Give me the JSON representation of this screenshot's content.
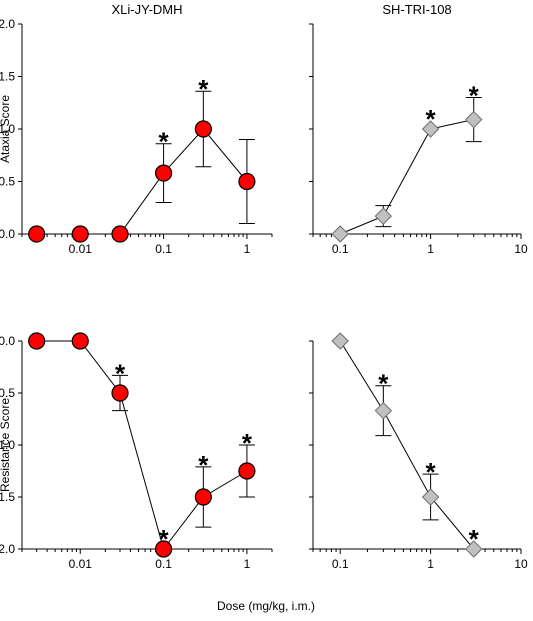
{
  "figure": {
    "shared_xlabel": "Dose (mg/kg, i.m.)",
    "marker_colors": {
      "XLi-JY-DMH": "#ff0000",
      "SH-TRI-108": "#c0c0c0"
    },
    "marker_shapes": {
      "XLi-JY-DMH": "circle",
      "SH-TRI-108": "diamond"
    }
  },
  "chart_data": [
    {
      "type": "scatter",
      "title": "XLi-JY-DMH",
      "ylabel": "Ataxia Score",
      "xscale": "log",
      "xlim": [
        0.002,
        2
      ],
      "ylim": [
        0,
        2
      ],
      "xticks": [
        0.01,
        0.1,
        1
      ],
      "xtick_labels": [
        "0.01",
        "0.1",
        "1"
      ],
      "yticks": [
        0,
        0.5,
        1,
        1.5,
        2
      ],
      "ytick_labels": [
        "0.0",
        "0.5",
        "1.0",
        "1.5",
        "2.0"
      ],
      "series": [
        {
          "x": [
            0.003,
            0.01,
            0.03,
            0.1,
            0.3,
            1
          ],
          "y": [
            0,
            0,
            0,
            0.58,
            1.0,
            0.5
          ],
          "error": [
            0,
            0,
            0,
            0.28,
            0.36,
            0.4
          ],
          "significant": [
            false,
            false,
            false,
            true,
            true,
            false
          ]
        }
      ]
    },
    {
      "type": "scatter",
      "title": "SH-TRI-108",
      "ylabel": "",
      "xscale": "log",
      "xlim": [
        0.05,
        10
      ],
      "ylim": [
        0,
        2
      ],
      "xticks": [
        0.1,
        1,
        10
      ],
      "xtick_labels": [
        "0.1",
        "1",
        "10"
      ],
      "yticks": [
        0,
        0.5,
        1,
        1.5,
        2
      ],
      "ytick_labels": [],
      "series": [
        {
          "x": [
            0.1,
            0.3,
            1,
            3
          ],
          "y": [
            0,
            0.17,
            1.0,
            1.09
          ],
          "error": [
            0,
            0.1,
            0,
            0.21
          ],
          "significant": [
            false,
            false,
            true,
            true
          ]
        }
      ]
    },
    {
      "type": "scatter",
      "title": "",
      "ylabel": "Resistance Score",
      "xscale": "log",
      "xlim": [
        0.002,
        2
      ],
      "ylim": [
        -2,
        0
      ],
      "xticks": [
        0.01,
        0.1,
        1
      ],
      "xtick_labels": [
        "0.01",
        "0.1",
        "1"
      ],
      "yticks": [
        0,
        -0.5,
        -1,
        -1.5,
        -2
      ],
      "ytick_labels": [
        "0.0",
        "-0.5",
        "-1.0",
        "-1.5",
        "-2.0"
      ],
      "series": [
        {
          "x": [
            0.003,
            0.01,
            0.03,
            0.1,
            0.3,
            1
          ],
          "y": [
            0,
            0,
            -0.5,
            -2.0,
            -1.5,
            -1.25
          ],
          "error": [
            0,
            0,
            0.17,
            0,
            0.29,
            0.25
          ],
          "significant": [
            false,
            false,
            true,
            true,
            true,
            true
          ]
        }
      ]
    },
    {
      "type": "scatter",
      "title": "",
      "ylabel": "",
      "xscale": "log",
      "xlim": [
        0.05,
        10
      ],
      "ylim": [
        -2,
        0
      ],
      "xticks": [
        0.1,
        1,
        10
      ],
      "xtick_labels": [
        "0.1",
        "1",
        "10"
      ],
      "yticks": [
        0,
        -0.5,
        -1,
        -1.5,
        -2
      ],
      "ytick_labels": [],
      "series": [
        {
          "x": [
            0.1,
            0.3,
            1,
            3
          ],
          "y": [
            0,
            -0.67,
            -1.5,
            -2.0
          ],
          "error": [
            0,
            0.24,
            0.22,
            0
          ],
          "significant": [
            false,
            true,
            true,
            true
          ]
        }
      ]
    }
  ]
}
